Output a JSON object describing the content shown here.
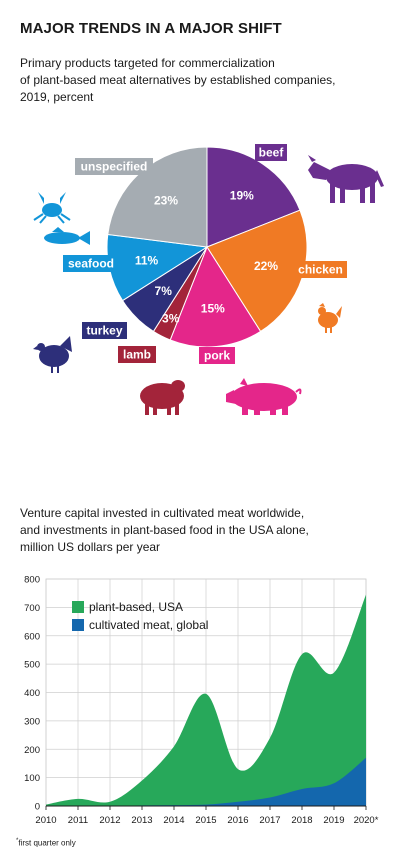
{
  "title": "MAJOR TRENDS IN A MAJOR SHIFT",
  "colors": {
    "beef": "#6a2f8f",
    "chicken": "#f07a24",
    "pork": "#e4268a",
    "lamb": "#a3243a",
    "turkey": "#2d2f7a",
    "seafood": "#1295d8",
    "unspecified": "#a5acb2",
    "plant_based": "#27a85a",
    "cultivated": "#1467ad"
  },
  "icons": {
    "cow": "cow-icon",
    "chicken": "chicken-icon",
    "pig": "pig-icon",
    "sheep": "sheep-icon",
    "turkey": "turkey-icon",
    "seafood": "crab-and-fish-icon"
  },
  "chart_data": [
    {
      "type": "pie",
      "subtitle_lines": [
        "Primary products targeted for commercialization",
        "of plant-based meat alternatives by established companies,",
        "2019, percent"
      ],
      "slices": [
        {
          "label": "beef",
          "value": 19,
          "value_label": "19%"
        },
        {
          "label": "chicken",
          "value": 22,
          "value_label": "22%"
        },
        {
          "label": "pork",
          "value": 15,
          "value_label": "15%"
        },
        {
          "label": "lamb",
          "value": 3,
          "value_label": "3%"
        },
        {
          "label": "turkey",
          "value": 7,
          "value_label": "7%"
        },
        {
          "label": "seafood",
          "value": 11,
          "value_label": "11%"
        },
        {
          "label": "unspecified",
          "value": 23,
          "value_label": "23%"
        }
      ]
    },
    {
      "type": "area",
      "subtitle_lines": [
        "Venture capital invested in cultivated meat worldwide,",
        "and investments in plant-based food in the USA alone,",
        "million US dollars per year"
      ],
      "x": [
        "2010",
        "2011",
        "2012",
        "2013",
        "2014",
        "2015",
        "2016",
        "2017",
        "2018",
        "2019",
        "2020*"
      ],
      "ylim": [
        0,
        800
      ],
      "yticks": [
        "0",
        "100",
        "200",
        "300",
        "400",
        "500",
        "600",
        "700",
        "800"
      ],
      "grid": true,
      "legend_position": "top-left",
      "series": [
        {
          "name": "plant-based, USA",
          "color_key": "plant_based",
          "values": [
            5,
            25,
            15,
            90,
            210,
            395,
            130,
            240,
            535,
            470,
            745
          ]
        },
        {
          "name": "cultivated meat, global",
          "color_key": "cultivated",
          "values": [
            0,
            0,
            1,
            2,
            3,
            5,
            15,
            30,
            60,
            80,
            170
          ]
        }
      ],
      "footnote_mark": "*",
      "footnote": "first quarter only"
    }
  ]
}
